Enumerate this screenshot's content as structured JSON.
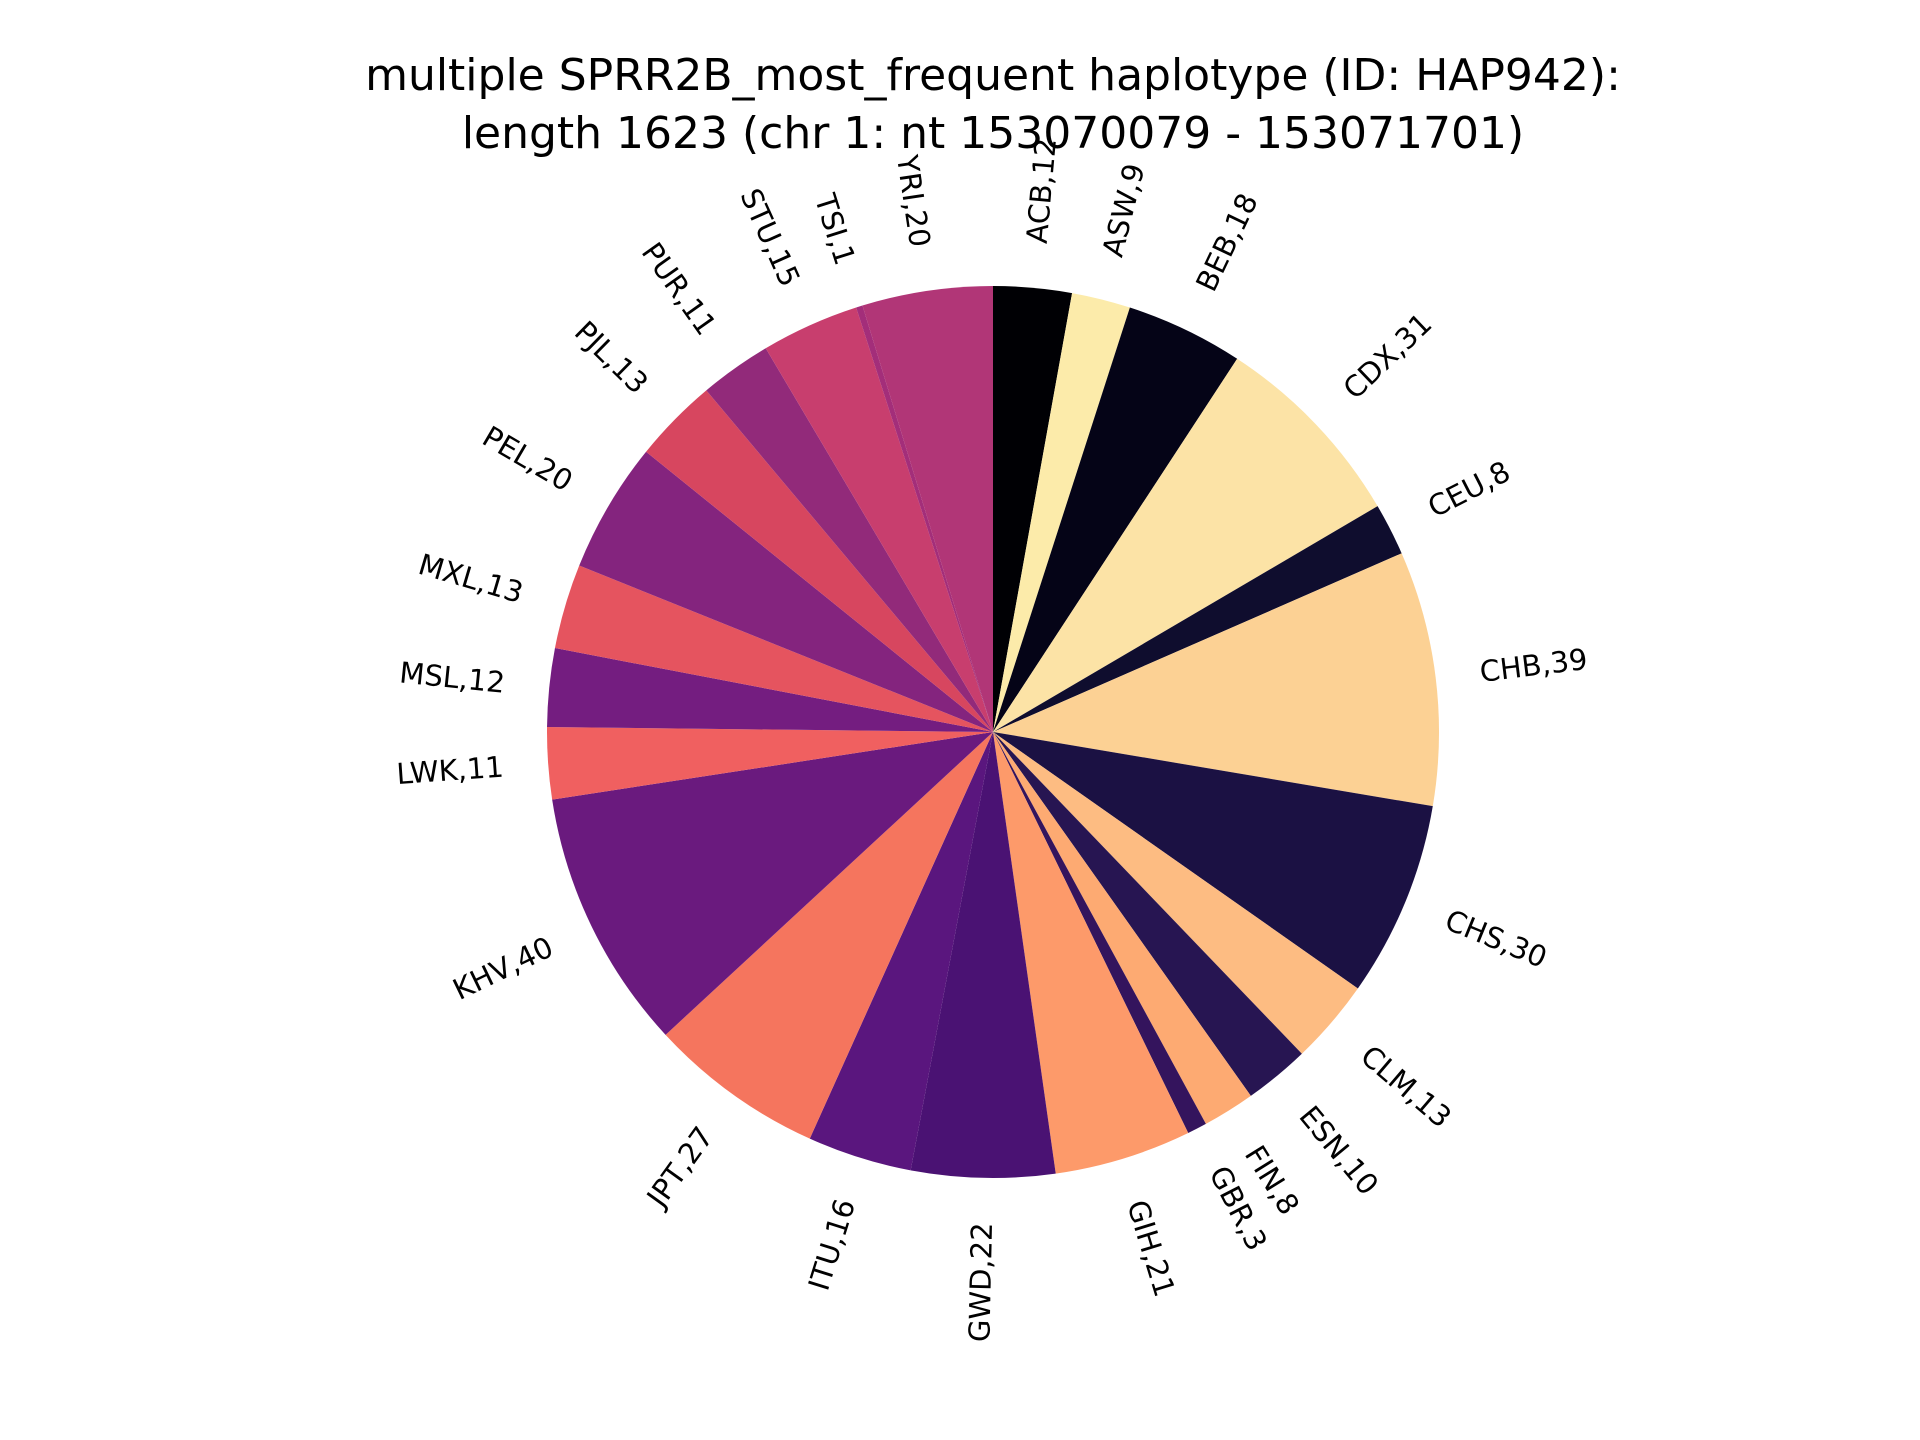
{
  "chart_data": {
    "type": "pie",
    "title_lines": [
      "multiple SPRR2B_most_frequent haplotype (ID: HAP942):",
      "length 1623 (chr 1: nt 153070079 - 153071701)"
    ],
    "start_angle": "top (12 o'clock), clockwise",
    "slices": [
      {
        "label": "ACB,12",
        "name": "ACB",
        "value": 12,
        "color": "#000004"
      },
      {
        "label": "ASW,9",
        "name": "ASW",
        "value": 9,
        "color": "#fcebaa"
      },
      {
        "label": "BEB,18",
        "name": "BEB",
        "value": 18,
        "color": "#050417"
      },
      {
        "label": "CDX,31",
        "name": "CDX",
        "value": 31,
        "color": "#fce3a6"
      },
      {
        "label": "CEU,8",
        "name": "CEU",
        "value": 8,
        "color": "#0f0d2e"
      },
      {
        "label": "CHB,39",
        "name": "CHB",
        "value": 39,
        "color": "#fcd194"
      },
      {
        "label": "CHS,30",
        "name": "CHS",
        "value": 30,
        "color": "#1b1143"
      },
      {
        "label": "CLM,13",
        "name": "CLM",
        "value": 13,
        "color": "#fdbc82"
      },
      {
        "label": "ESN,10",
        "name": "ESN",
        "value": 10,
        "color": "#271552"
      },
      {
        "label": "FIN,8",
        "name": "FIN",
        "value": 8,
        "color": "#fdaa72"
      },
      {
        "label": "GBR,3",
        "name": "GBR",
        "value": 3,
        "color": "#34145d"
      },
      {
        "label": "GIH,21",
        "name": "GIH",
        "value": 21,
        "color": "#fd9a6a"
      },
      {
        "label": "GWD,22",
        "name": "GWD",
        "value": 22,
        "color": "#4a1273"
      },
      {
        "label": "ITU,16",
        "name": "ITU",
        "value": 16,
        "color": "#5a167e"
      },
      {
        "label": "JPT,27",
        "name": "JPT",
        "value": 27,
        "color": "#f5755e"
      },
      {
        "label": "KHV,40",
        "name": "KHV",
        "value": 40,
        "color": "#6a1a7e"
      },
      {
        "label": "LWK,11",
        "name": "LWK",
        "value": 11,
        "color": "#f06060"
      },
      {
        "label": "MSL,12",
        "name": "MSL",
        "value": 12,
        "color": "#741d80"
      },
      {
        "label": "MXL,13",
        "name": "MXL",
        "value": 13,
        "color": "#e5545f"
      },
      {
        "label": "PEL,20",
        "name": "PEL",
        "value": 20,
        "color": "#84247e"
      },
      {
        "label": "PJL,13",
        "name": "PJL",
        "value": 13,
        "color": "#d7465f"
      },
      {
        "label": "PUR,11",
        "name": "PUR",
        "value": 11,
        "color": "#922a7a"
      },
      {
        "label": "STU,15",
        "name": "STU",
        "value": 15,
        "color": "#c83e6e"
      },
      {
        "label": "TSI,1",
        "name": "TSI",
        "value": 1,
        "color": "#a32e7a"
      },
      {
        "label": "YRI,20",
        "name": "YRI",
        "value": 20,
        "color": "#b13677"
      }
    ]
  }
}
